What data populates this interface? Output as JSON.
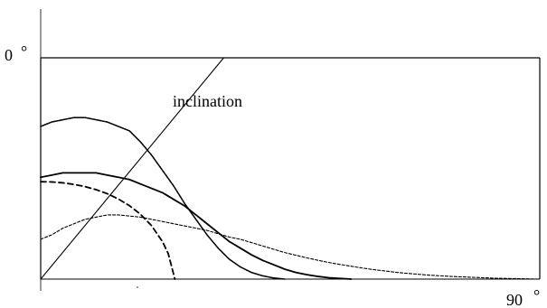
{
  "chart_data": {
    "type": "line",
    "title": "",
    "xlabel": "",
    "ylabel": "",
    "xlim": [
      0,
      90
    ],
    "ylim": [
      0,
      1
    ],
    "tick_labels": {
      "y_top": "0",
      "x_right": "90"
    },
    "degree_symbol": "°",
    "annotation": "inclination",
    "series": [
      {
        "values": [
          [
            0,
            0.69
          ],
          [
            2,
            0.71
          ],
          [
            4,
            0.72
          ],
          [
            6,
            0.73
          ],
          [
            8,
            0.73
          ],
          [
            10,
            0.72
          ],
          [
            12,
            0.71
          ],
          [
            14,
            0.69
          ],
          [
            16,
            0.67
          ],
          [
            18,
            0.62
          ],
          [
            20,
            0.56
          ],
          [
            22,
            0.49
          ],
          [
            24,
            0.42
          ],
          [
            26,
            0.34
          ],
          [
            28,
            0.27
          ],
          [
            30,
            0.2
          ],
          [
            32,
            0.14
          ],
          [
            34,
            0.09
          ],
          [
            36,
            0.055
          ],
          [
            38,
            0.03
          ],
          [
            40,
            0.015
          ],
          [
            42,
            0.005
          ],
          [
            44,
            0.0
          ]
        ],
        "line_style": "dotted-noisy"
      },
      {
        "values": [
          [
            0,
            0.46
          ],
          [
            2,
            0.47
          ],
          [
            4,
            0.48
          ],
          [
            6,
            0.48
          ],
          [
            8,
            0.48
          ],
          [
            10,
            0.48
          ],
          [
            12,
            0.47
          ],
          [
            14,
            0.46
          ],
          [
            16,
            0.45
          ],
          [
            18,
            0.43
          ],
          [
            20,
            0.41
          ],
          [
            22,
            0.39
          ],
          [
            24,
            0.36
          ],
          [
            26,
            0.33
          ],
          [
            28,
            0.29
          ],
          [
            30,
            0.25
          ],
          [
            32,
            0.21
          ],
          [
            34,
            0.17
          ],
          [
            36,
            0.14
          ],
          [
            38,
            0.11
          ],
          [
            40,
            0.085
          ],
          [
            42,
            0.065
          ],
          [
            44,
            0.045
          ],
          [
            46,
            0.03
          ],
          [
            48,
            0.02
          ],
          [
            50,
            0.012
          ],
          [
            52,
            0.006
          ],
          [
            54,
            0.003
          ],
          [
            56,
            0.0
          ]
        ],
        "line_style": "solid-noisy"
      },
      {
        "values": [
          [
            0,
            0.18
          ],
          [
            2,
            0.2
          ],
          [
            4,
            0.23
          ],
          [
            6,
            0.25
          ],
          [
            8,
            0.27
          ],
          [
            10,
            0.28
          ],
          [
            12,
            0.29
          ],
          [
            14,
            0.29
          ],
          [
            16,
            0.285
          ],
          [
            18,
            0.28
          ],
          [
            20,
            0.27
          ],
          [
            22,
            0.26
          ],
          [
            24,
            0.25
          ],
          [
            26,
            0.24
          ],
          [
            28,
            0.23
          ],
          [
            30,
            0.22
          ],
          [
            32,
            0.205
          ],
          [
            34,
            0.19
          ],
          [
            36,
            0.18
          ],
          [
            38,
            0.165
          ],
          [
            40,
            0.15
          ],
          [
            42,
            0.135
          ],
          [
            44,
            0.12
          ],
          [
            46,
            0.108
          ],
          [
            48,
            0.096
          ],
          [
            50,
            0.085
          ],
          [
            52,
            0.075
          ],
          [
            54,
            0.066
          ],
          [
            56,
            0.058
          ],
          [
            58,
            0.05
          ],
          [
            60,
            0.043
          ],
          [
            62,
            0.037
          ],
          [
            64,
            0.031
          ],
          [
            66,
            0.026
          ],
          [
            68,
            0.022
          ],
          [
            70,
            0.018
          ],
          [
            72,
            0.015
          ],
          [
            74,
            0.012
          ],
          [
            76,
            0.01
          ],
          [
            78,
            0.008
          ],
          [
            80,
            0.006
          ],
          [
            82,
            0.004
          ],
          [
            84,
            0.003
          ],
          [
            86,
            0.002
          ],
          [
            88,
            0.001
          ],
          [
            90,
            0.0
          ]
        ],
        "line_style": "dashed-fine"
      },
      {
        "values": [
          [
            0,
            0.44
          ],
          [
            2,
            0.439
          ],
          [
            4,
            0.435
          ],
          [
            6,
            0.428
          ],
          [
            8,
            0.418
          ],
          [
            10,
            0.404
          ],
          [
            12,
            0.386
          ],
          [
            14,
            0.362
          ],
          [
            16,
            0.332
          ],
          [
            18,
            0.293
          ],
          [
            20,
            0.241
          ],
          [
            22,
            0.168
          ],
          [
            23,
            0.115
          ],
          [
            24.2,
            0.0
          ]
        ],
        "line_style": "dashed-heavy"
      },
      {
        "values": [
          [
            0,
            0.0
          ],
          [
            33,
            1.0
          ]
        ],
        "line_style": "solid-thin"
      }
    ]
  }
}
